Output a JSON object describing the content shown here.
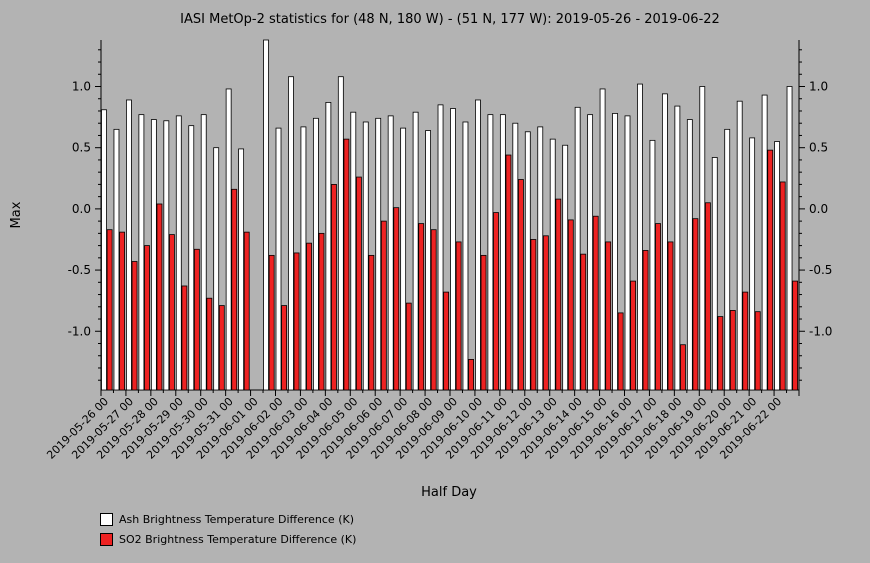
{
  "chart_data": {
    "type": "bar",
    "title": "IASI MetOp-2 statistics for (48 N, 180 W) - (51 N, 177 W): 2019-05-26 - 2019-06-22",
    "xlabel": "Half Day",
    "ylabel": "Max",
    "ylim": [
      -1.48,
      1.38
    ],
    "yticks": [
      -1.0,
      -0.5,
      0.0,
      0.5,
      1.0
    ],
    "ytick_labels": [
      "-1.0",
      "-0.5",
      "0.0",
      "0.5",
      "1.0"
    ],
    "x_tick_labels": [
      "2019-05-26 00",
      "2019-05-27 00",
      "2019-05-28 00",
      "2019-05-29 00",
      "2019-05-30 00",
      "2019-05-31 00",
      "2019-06-01 00",
      "2019-06-02 00",
      "2019-06-03 00",
      "2019-06-04 00",
      "2019-06-05 00",
      "2019-06-06 00",
      "2019-06-07 00",
      "2019-06-08 00",
      "2019-06-09 00",
      "2019-06-10 00",
      "2019-06-11 00",
      "2019-06-12 00",
      "2019-06-13 00",
      "2019-06-14 00",
      "2019-06-15 00",
      "2019-06-16 00",
      "2019-06-17 00",
      "2019-06-18 00",
      "2019-06-19 00",
      "2019-06-20 00",
      "2019-06-21 00",
      "2019-06-22 00"
    ],
    "grid": false,
    "legend_position": "bottom-left",
    "series": [
      {
        "name": "Ash Brightness Temperature Difference (K)",
        "color": "#ffffff",
        "values": [
          0.81,
          0.65,
          0.89,
          0.77,
          0.73,
          0.72,
          0.76,
          0.68,
          0.77,
          0.5,
          0.98,
          0.49,
          null,
          1.38,
          0.66,
          1.08,
          0.67,
          0.74,
          0.87,
          1.08,
          0.79,
          0.71,
          0.74,
          0.76,
          0.66,
          0.79,
          0.64,
          0.85,
          0.82,
          0.71,
          0.89,
          0.77,
          0.77,
          0.7,
          0.63,
          0.67,
          0.57,
          0.52,
          0.83,
          0.77,
          0.98,
          0.78,
          0.76,
          1.02,
          0.56,
          0.94,
          0.84,
          0.73,
          1.0,
          0.42,
          0.65,
          0.88,
          0.58,
          0.93,
          0.55,
          1.0
        ]
      },
      {
        "name": "SO2 Brightness Temperature Difference (K)",
        "color": "#ee2222",
        "values": [
          -0.17,
          -0.19,
          -0.43,
          -0.3,
          0.04,
          -0.21,
          -0.63,
          -0.33,
          -0.73,
          -0.79,
          0.16,
          -0.19,
          null,
          -0.38,
          -0.79,
          -0.36,
          -0.28,
          -0.2,
          0.2,
          0.57,
          0.26,
          -0.38,
          -0.1,
          0.01,
          -0.77,
          -0.12,
          -0.17,
          -0.68,
          -0.27,
          -1.23,
          -0.38,
          -0.03,
          0.44,
          0.24,
          -0.25,
          -0.22,
          0.08,
          -0.09,
          -0.37,
          -0.06,
          -0.27,
          -0.85,
          -0.59,
          -0.34,
          -0.12,
          -0.27,
          -1.11,
          -0.08,
          0.05,
          -0.88,
          -0.83,
          -0.68,
          -0.84,
          0.48,
          0.22,
          -0.59
        ]
      }
    ]
  }
}
